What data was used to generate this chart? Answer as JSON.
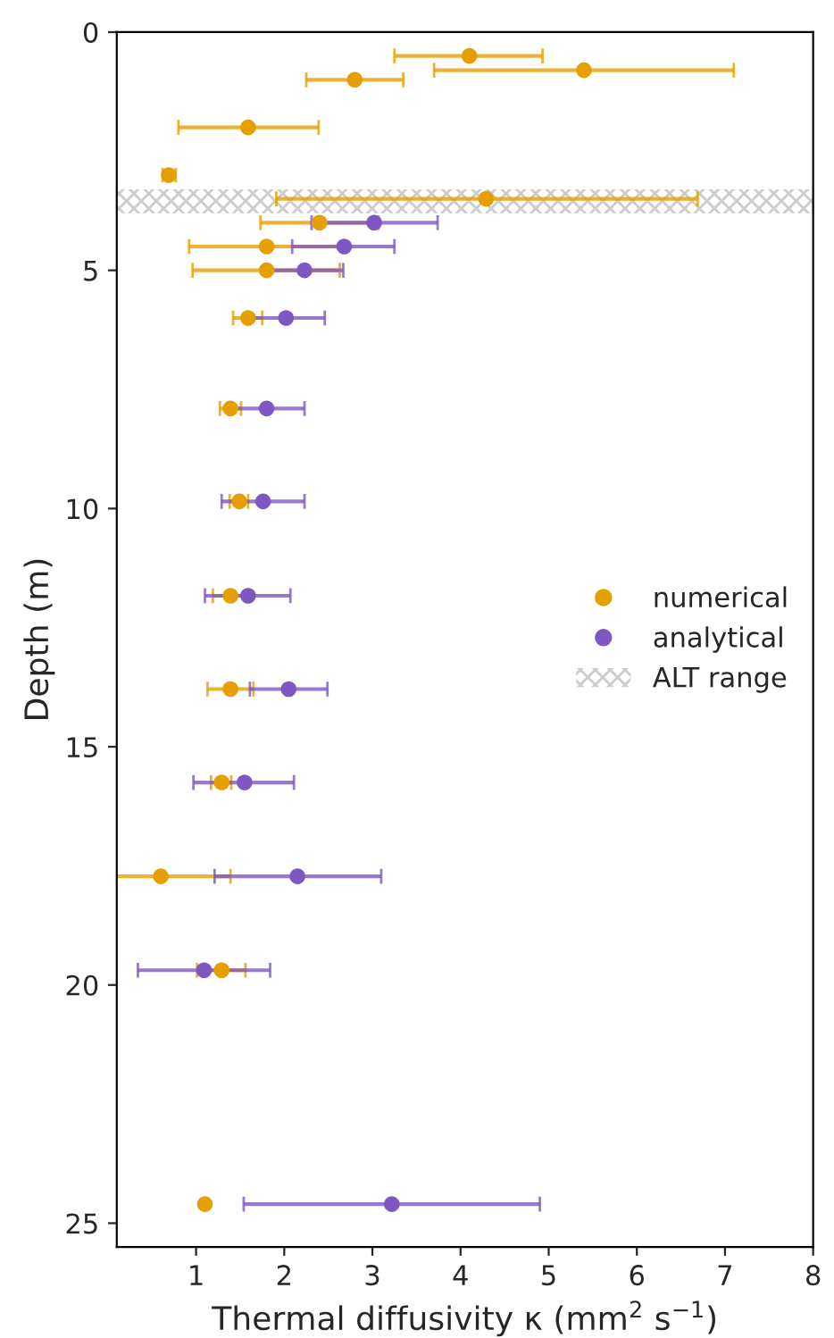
{
  "chart_data": {
    "type": "scatter",
    "xlabel": "Thermal diffusivity κ (mm$^{2}$ s$^{−1}$)",
    "ylabel": "Depth (m)",
    "series": [
      {
        "name": "numerical",
        "color": "#e69f00",
        "x": [
          4.1,
          5.4,
          2.8,
          1.59,
          0.69,
          4.29,
          2.4,
          1.8,
          1.8,
          1.59,
          1.39,
          1.49,
          1.39,
          1.39,
          1.29,
          0.6,
          1.29,
          1.1
        ],
        "values": [
          0.5,
          0.8,
          1.0,
          2.0,
          3.0,
          3.5,
          4.0,
          4.5,
          5.0,
          6.0,
          7.9,
          9.85,
          11.83,
          13.79,
          15.75,
          17.72,
          19.69,
          24.6
        ],
        "xerrors": [
          [
            3.25,
            4.93
          ],
          [
            3.7,
            7.1
          ],
          [
            2.25,
            3.35
          ],
          [
            0.8,
            2.39
          ],
          [
            0.62,
            0.77
          ],
          [
            1.91,
            6.69
          ],
          [
            1.73,
            3.07
          ],
          [
            0.92,
            2.68
          ],
          [
            0.96,
            2.63
          ],
          [
            1.42,
            1.75
          ],
          [
            1.27,
            1.51
          ],
          [
            1.38,
            1.59
          ],
          [
            1.19,
            1.59
          ],
          [
            1.13,
            1.65
          ],
          [
            1.17,
            1.4
          ],
          0.79,
          [
            1.01,
            1.56
          ],
          null
        ]
      },
      {
        "name": "analytical",
        "color": "#7e57c2",
        "x": [
          3.02,
          2.68,
          2.23,
          2.02,
          1.8,
          1.76,
          1.59,
          2.05,
          1.55,
          2.15,
          1.09,
          3.22
        ],
        "values": [
          4.0,
          4.5,
          5.0,
          6.0,
          7.9,
          9.85,
          11.83,
          13.79,
          15.75,
          17.72,
          19.69,
          24.6
        ],
        "xerrors": [
          [
            2.31,
            3.74
          ],
          [
            2.09,
            3.25
          ],
          [
            1.79,
            2.67
          ],
          [
            1.58,
            2.46
          ],
          [
            1.37,
            2.23
          ],
          [
            1.29,
            2.23
          ],
          [
            1.1,
            2.07
          ],
          [
            1.61,
            2.49
          ],
          [
            0.97,
            2.11
          ],
          [
            1.21,
            3.1
          ],
          [
            0.34,
            1.84
          ],
          [
            1.54,
            4.9
          ]
        ]
      }
    ],
    "bands": [
      {
        "axis": "y",
        "from": 3.3,
        "to": 3.8,
        "label": "ALT range",
        "color": "#cccccc"
      }
    ],
    "xlim": [
      0.1,
      8
    ],
    "xticks": [
      1,
      2,
      3,
      4,
      5,
      6,
      7,
      8
    ],
    "ylim": [
      25.5,
      0
    ],
    "yticks": [
      0,
      5,
      10,
      15,
      20,
      25
    ],
    "marker": "circle",
    "grid": false,
    "legend": "right"
  }
}
